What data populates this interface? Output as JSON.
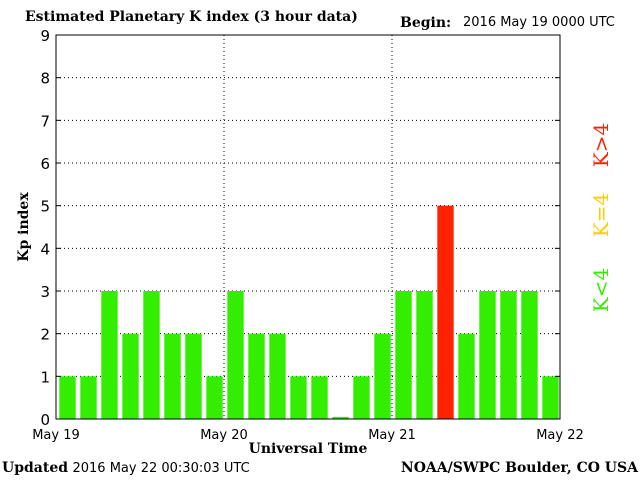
{
  "header": {
    "title": "Estimated Planetary K index (3 hour data)",
    "begin_label": "Begin:",
    "begin_value": "2016 May 19 0000 UTC"
  },
  "footer": {
    "updated_label": "Updated",
    "updated_value": "2016 May 22 00:30:03 UTC",
    "credit": "NOAA/SWPC Boulder, CO USA"
  },
  "legend": [
    {
      "label": "K>4",
      "color": "#ff2200"
    },
    {
      "label": "K=4",
      "color": "#ffcc00"
    },
    {
      "label": "K<4",
      "color": "#33ee00"
    }
  ],
  "chart_data": {
    "type": "bar",
    "title": "Estimated Planetary K index (3 hour data)",
    "xlabel": "Universal Time",
    "ylabel": "Kp index",
    "ylim": [
      0,
      9
    ],
    "yticks": [
      0,
      1,
      2,
      3,
      4,
      5,
      6,
      7,
      8,
      9
    ],
    "xtick_labels": [
      "May 19",
      "May 20",
      "May 21",
      "May 22"
    ],
    "grid": true,
    "legend_position": "right",
    "values": [
      1,
      1,
      3,
      2,
      3,
      2,
      2,
      1,
      3,
      2,
      2,
      1,
      1,
      0.05,
      1,
      2,
      3,
      3,
      5,
      2,
      3,
      3,
      3,
      1
    ],
    "colors": {
      "low": "#33ee00",
      "equal": "#ffcc00",
      "high": "#ff2200"
    }
  }
}
